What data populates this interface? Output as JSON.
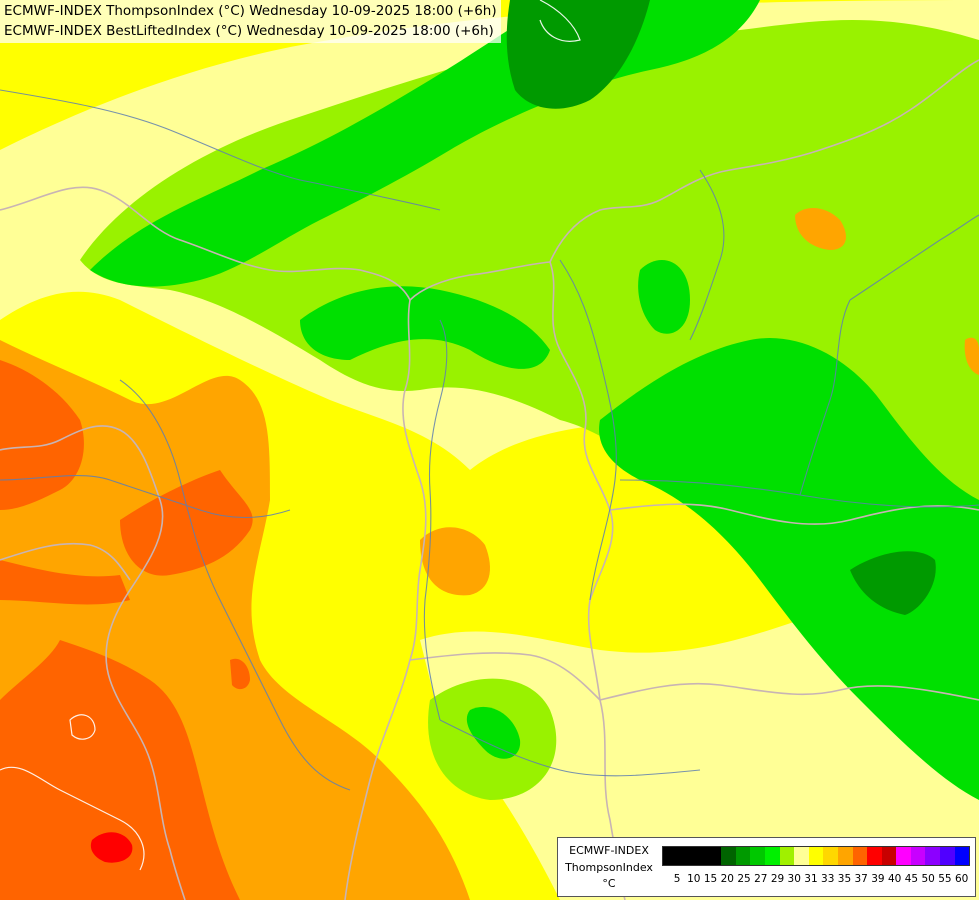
{
  "titles": [
    "ECMWF-INDEX ThompsonIndex (°C) Wednesday 10-09-2025 18:00 (+6h)",
    "ECMWF-INDEX BestLiftedIndex (°C) Wednesday 10-09-2025 18:00 (+6h)"
  ],
  "legend": {
    "model": "ECMWF-INDEX",
    "parameter": "ThompsonIndex",
    "unit": "°C",
    "colors": [
      "#000000",
      "#000000",
      "#000000",
      "#000000",
      "#006400",
      "#009a00",
      "#00c800",
      "#00f000",
      "#a0f000",
      "#ffff96",
      "#ffff00",
      "#ffd700",
      "#ffa500",
      "#ff6400",
      "#ff0000",
      "#c80000",
      "#ff00ff",
      "#c800ff",
      "#8c00ff",
      "#5000ff",
      "#0000ff"
    ],
    "ticks": [
      "5",
      "10",
      "15",
      "20",
      "25",
      "27",
      "29",
      "30",
      "31",
      "33",
      "35",
      "37",
      "39",
      "40",
      "45",
      "50",
      "55",
      "60"
    ]
  },
  "palette": {
    "dark_green": "#009a00",
    "green": "#00e000",
    "light_green": "#99f200",
    "pale_yellow": "#ffff96",
    "yellow": "#ffff00",
    "orange": "#ffa500",
    "dark_orange": "#ff6400",
    "red": "#ff0000",
    "border": "#c8b4b4",
    "river": "#5f7fb0"
  }
}
